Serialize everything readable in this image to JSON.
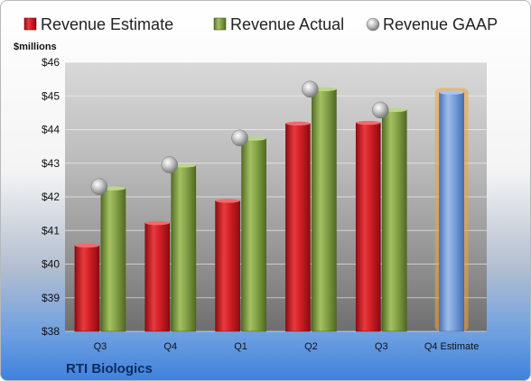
{
  "chart_data": {
    "type": "bar",
    "company": "RTI Biologics",
    "ylabel": "$millions",
    "ylim": [
      38,
      46
    ],
    "yticks": [
      "$38",
      "$39",
      "$40",
      "$41",
      "$42",
      "$43",
      "$44",
      "$45",
      "$46"
    ],
    "categories": [
      "Q3",
      "Q4",
      "Q1",
      "Q2",
      "Q3",
      "Q4 Estimate"
    ],
    "series": [
      {
        "name": "Revenue Estimate",
        "values": [
          40.55,
          41.22,
          41.88,
          44.18,
          44.2,
          null
        ]
      },
      {
        "name": "Revenue Actual",
        "values": [
          42.25,
          42.93,
          43.73,
          45.2,
          44.58,
          45.1
        ]
      },
      {
        "name": "Revenue GAAP",
        "values": [
          42.3,
          42.95,
          43.75,
          45.2,
          44.58,
          null
        ]
      }
    ],
    "colors": {
      "estimate": "#c8171d",
      "actual": "#7d9b40",
      "gaap": "#b5b5b5",
      "forecast": "#6f99d6",
      "forecast_glow": "#f4a236"
    },
    "legend_position": "top",
    "grid": true
  }
}
